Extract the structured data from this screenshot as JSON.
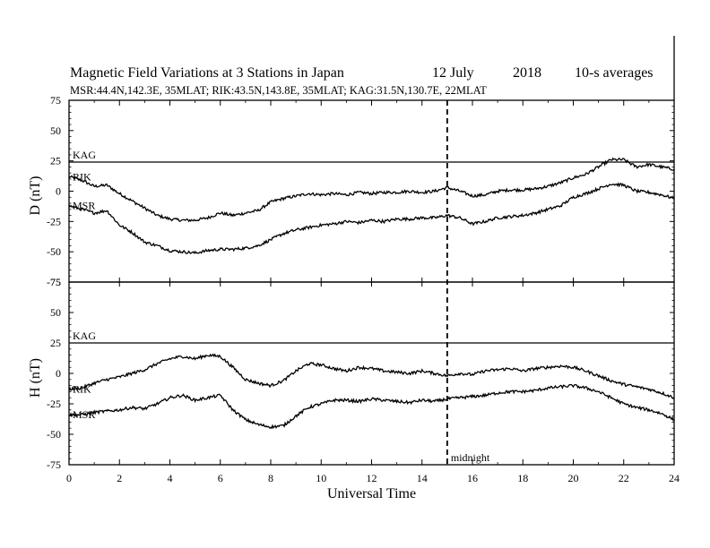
{
  "header": {
    "title": "Magnetic Field Variations at 3 Stations in Japan",
    "date": "12 July",
    "year": "2018",
    "avg": "10-s averages",
    "stations": "MSR:44.4N,142.3E, 35MLAT;  RIK:43.5N,143.8E, 35MLAT;  KAG:31.5N,130.7E, 22MLAT"
  },
  "chart_data": {
    "type": "line",
    "xlabel": "Universal Time",
    "xlim": [
      0,
      24
    ],
    "xticks": [
      0,
      2,
      4,
      6,
      8,
      10,
      12,
      14,
      16,
      18,
      20,
      22,
      24
    ],
    "annotation": {
      "x": 15,
      "label": "midnight"
    },
    "panels": [
      {
        "name": "D",
        "ylabel": "D (nT)",
        "ylim": [
          -75,
          75
        ],
        "yticks": [
          75,
          50,
          25,
          0,
          -25,
          -50,
          -75
        ],
        "series": [
          {
            "name": "KAG",
            "x": [
              0,
              24
            ],
            "y": [
              24,
              24
            ]
          },
          {
            "name": "RIK",
            "x": [
              0,
              0.5,
              1,
              1.5,
              2,
              2.5,
              3,
              3.5,
              4,
              4.5,
              5,
              5.5,
              6,
              6.5,
              7,
              7.5,
              8,
              8.5,
              9,
              9.5,
              10,
              10.5,
              11,
              11.5,
              12,
              12.5,
              13,
              13.5,
              14,
              14.5,
              15,
              15.5,
              16,
              16.5,
              17,
              17.5,
              18,
              18.5,
              19,
              19.5,
              20,
              20.5,
              21,
              21.5,
              22,
              22.5,
              23,
              23.5,
              24
            ],
            "y": [
              12,
              9,
              4,
              5,
              -2,
              -8,
              -14,
              -20,
              -23,
              -24,
              -24,
              -22,
              -18,
              -20,
              -18,
              -16,
              -9,
              -6,
              -4,
              -2,
              -3,
              -2,
              -3,
              -1,
              -2,
              -1,
              -1,
              0,
              -1,
              0,
              3,
              0,
              -4,
              -3,
              0,
              1,
              1,
              2,
              4,
              7,
              11,
              14,
              20,
              26,
              26,
              20,
              22,
              20,
              18
            ]
          },
          {
            "name": "MSR",
            "x": [
              0,
              0.5,
              1,
              1.5,
              2,
              2.5,
              3,
              3.5,
              4,
              4.5,
              5,
              5.5,
              6,
              6.5,
              7,
              7.5,
              8,
              8.5,
              9,
              9.5,
              10,
              10.5,
              11,
              11.5,
              12,
              12.5,
              13,
              13.5,
              14,
              14.5,
              15,
              15.5,
              16,
              16.5,
              17,
              17.5,
              18,
              18.5,
              19,
              19.5,
              20,
              20.5,
              21,
              21.5,
              22,
              22.5,
              23,
              23.5,
              24
            ],
            "y": [
              -12,
              -15,
              -18,
              -16,
              -28,
              -34,
              -42,
              -45,
              -49,
              -50,
              -51,
              -49,
              -48,
              -48,
              -47,
              -45,
              -40,
              -35,
              -32,
              -30,
              -28,
              -27,
              -25,
              -26,
              -24,
              -25,
              -23,
              -23,
              -22,
              -22,
              -20,
              -22,
              -27,
              -25,
              -22,
              -21,
              -20,
              -18,
              -15,
              -12,
              -5,
              -2,
              2,
              6,
              5,
              0,
              -1,
              -3,
              -6
            ]
          }
        ]
      },
      {
        "name": "H",
        "ylabel": "H (nT)",
        "ylim": [
          -75,
          75
        ],
        "yticks": [
          75,
          50,
          25,
          0,
          -25,
          -50,
          -75
        ],
        "series": [
          {
            "name": "KAG",
            "x": [
              0,
              24
            ],
            "y": [
              25,
              25
            ]
          },
          {
            "name": "RIK",
            "x": [
              0,
              0.5,
              1,
              1.5,
              2,
              2.5,
              3,
              3.5,
              4,
              4.5,
              5,
              5.5,
              6,
              6.5,
              7,
              7.5,
              8,
              8.5,
              9,
              9.5,
              10,
              10.5,
              11,
              11.5,
              12,
              12.5,
              13,
              13.5,
              14,
              14.5,
              15,
              15.5,
              16,
              16.5,
              17,
              17.5,
              18,
              18.5,
              19,
              19.5,
              20,
              20.5,
              21,
              21.5,
              22,
              22.5,
              23,
              23.5,
              24
            ],
            "y": [
              -13,
              -12,
              -8,
              -5,
              -3,
              0,
              3,
              8,
              12,
              14,
              12,
              15,
              14,
              5,
              -5,
              -8,
              -10,
              -6,
              2,
              8,
              7,
              4,
              2,
              5,
              4,
              2,
              1,
              0,
              2,
              0,
              -2,
              0,
              -1,
              2,
              3,
              4,
              2,
              4,
              5,
              6,
              5,
              2,
              -2,
              -6,
              -9,
              -11,
              -13,
              -16,
              -20
            ]
          },
          {
            "name": "MSR",
            "x": [
              0,
              0.5,
              1,
              1.5,
              2,
              2.5,
              3,
              3.5,
              4,
              4.5,
              5,
              5.5,
              6,
              6.5,
              7,
              7.5,
              8,
              8.5,
              9,
              9.5,
              10,
              10.5,
              11,
              11.5,
              12,
              12.5,
              13,
              13.5,
              14,
              14.5,
              15,
              15.5,
              16,
              16.5,
              17,
              17.5,
              18,
              18.5,
              19,
              19.5,
              20,
              20.5,
              21,
              21.5,
              22,
              22.5,
              23,
              23.5,
              24
            ],
            "y": [
              -34,
              -34,
              -32,
              -31,
              -30,
              -28,
              -29,
              -25,
              -20,
              -18,
              -22,
              -20,
              -18,
              -30,
              -38,
              -42,
              -44,
              -43,
              -35,
              -28,
              -25,
              -22,
              -22,
              -23,
              -21,
              -22,
              -23,
              -24,
              -22,
              -23,
              -21,
              -20,
              -19,
              -18,
              -16,
              -15,
              -15,
              -14,
              -12,
              -11,
              -10,
              -12,
              -15,
              -20,
              -25,
              -28,
              -30,
              -33,
              -38
            ]
          }
        ]
      }
    ]
  }
}
